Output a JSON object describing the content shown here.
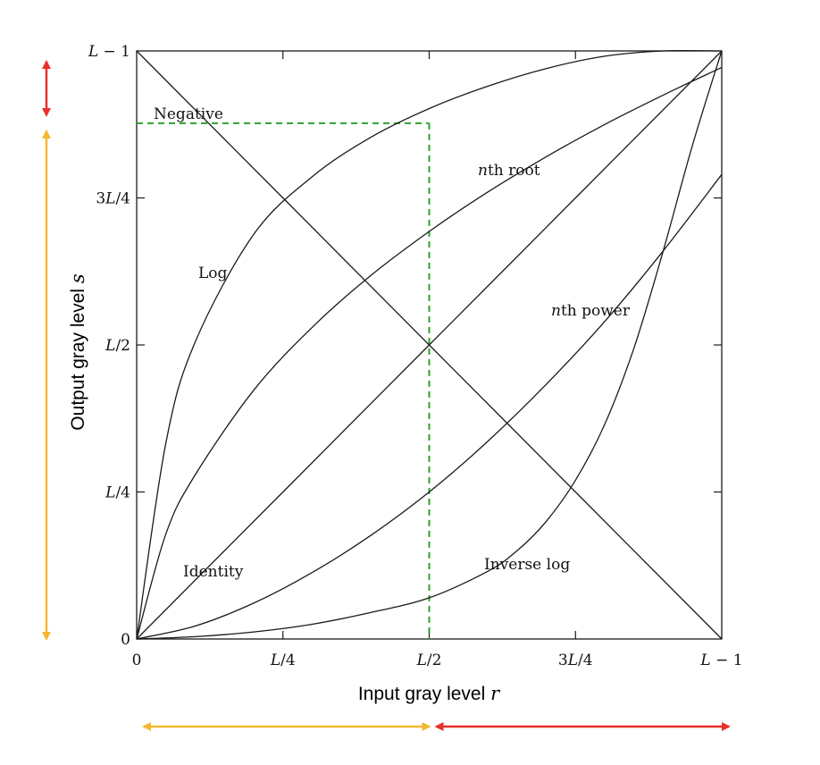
{
  "chart_data": {
    "type": "line",
    "title": "",
    "xlabel": "Input gray level r",
    "ylabel": "Output gray level s",
    "xlabel_text": "Input gray level ",
    "xlabel_var": "r",
    "ylabel_text": "Output gray level ",
    "ylabel_var": "s",
    "xlim": [
      0,
      1
    ],
    "ylim": [
      0,
      1
    ],
    "grid": false,
    "x_ticks": [
      {
        "value": 0,
        "label": "0"
      },
      {
        "value": 0.25,
        "label": "L/4"
      },
      {
        "value": 0.5,
        "label": "L/2"
      },
      {
        "value": 0.75,
        "label": "3L/4"
      },
      {
        "value": 1,
        "label": "L − 1"
      }
    ],
    "y_ticks": [
      {
        "value": 0,
        "label": "0"
      },
      {
        "value": 0.25,
        "label": "L/4"
      },
      {
        "value": 0.5,
        "label": "L/2"
      },
      {
        "value": 0.75,
        "label": "3L/4"
      },
      {
        "value": 1,
        "label": "L − 1"
      }
    ],
    "series": [
      {
        "name": "Negative",
        "x": [
          0,
          0.25,
          0.5,
          0.75,
          1
        ],
        "y": [
          1,
          0.75,
          0.5,
          0.25,
          0
        ]
      },
      {
        "name": "Identity",
        "x": [
          0,
          0.25,
          0.5,
          0.75,
          1
        ],
        "y": [
          0,
          0.25,
          0.5,
          0.75,
          1
        ]
      },
      {
        "name": "Log",
        "x": [
          0,
          0.05,
          0.1,
          0.2,
          0.3,
          0.4,
          0.5,
          0.6,
          0.7,
          0.8,
          0.9,
          1
        ],
        "y": [
          0.0,
          0.334,
          0.505,
          0.688,
          0.786,
          0.853,
          0.902,
          0.94,
          0.97,
          0.991,
          1.0,
          1.0
        ]
      },
      {
        "name": "nth root",
        "x": [
          0,
          0.05,
          0.1,
          0.2,
          0.3,
          0.4,
          0.5,
          0.6,
          0.7,
          0.8,
          0.9,
          1
        ],
        "y": [
          0.0,
          0.179,
          0.279,
          0.423,
          0.53,
          0.618,
          0.693,
          0.76,
          0.82,
          0.875,
          0.925,
          0.972
        ]
      },
      {
        "name": "nth power",
        "x": [
          0,
          0.1,
          0.2,
          0.3,
          0.4,
          0.5,
          0.6,
          0.7,
          0.8,
          0.9,
          1
        ],
        "y": [
          0.0,
          0.022,
          0.061,
          0.113,
          0.176,
          0.25,
          0.336,
          0.433,
          0.54,
          0.66,
          0.79
        ]
      },
      {
        "name": "Inverse log",
        "x": [
          0,
          0.1,
          0.2,
          0.3,
          0.4,
          0.5,
          0.6,
          0.65,
          0.7,
          0.75,
          0.8,
          0.85,
          0.9,
          0.95,
          1
        ],
        "y": [
          0.0,
          0.004,
          0.012,
          0.025,
          0.045,
          0.07,
          0.115,
          0.15,
          0.2,
          0.27,
          0.365,
          0.495,
          0.66,
          0.84,
          1.0
        ]
      }
    ],
    "annotations": {
      "green_dashed_guide": {
        "x": 0.5,
        "y": 0.877,
        "color": "#2ca02c"
      },
      "output_ranges": [
        {
          "from": 0.877,
          "to": 1.0,
          "color": "#e8312a"
        },
        {
          "from": 0.0,
          "to": 0.877,
          "color": "#f5b731"
        }
      ],
      "input_ranges": [
        {
          "from": 0.0,
          "to": 0.5,
          "color": "#f5b731"
        },
        {
          "from": 0.5,
          "to": 1.0,
          "color": "#e8312a"
        }
      ]
    }
  }
}
